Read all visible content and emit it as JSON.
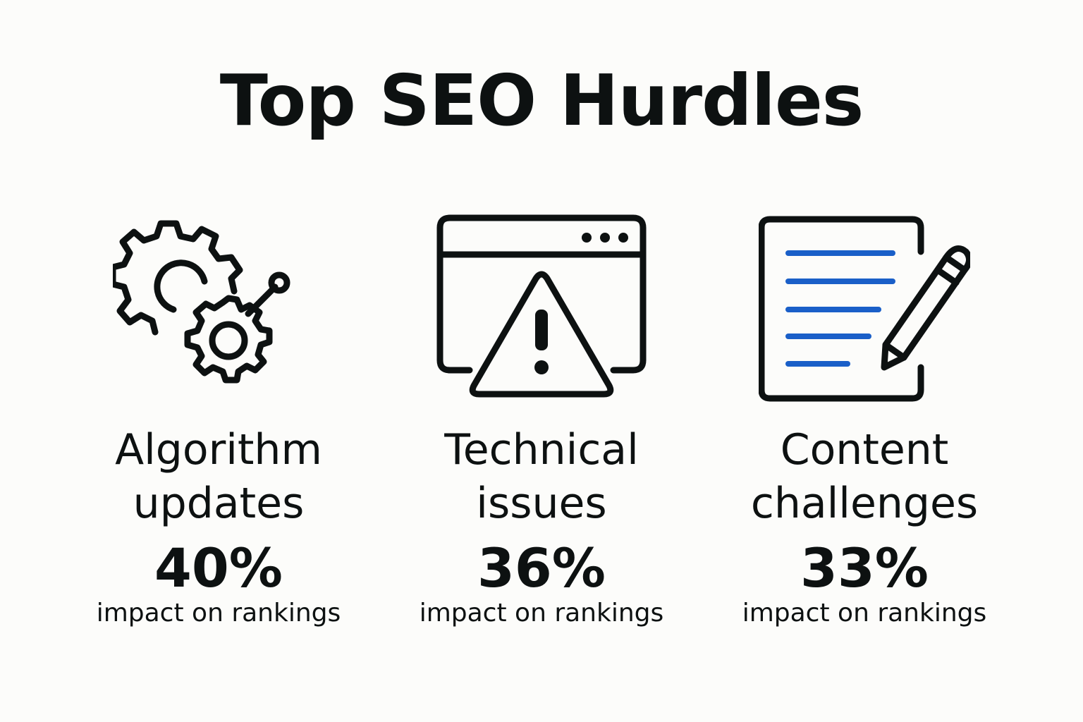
{
  "title": "Top SEO Hurdles",
  "accent_color": "#1a5fc8",
  "ink_color": "#0d1111",
  "hurdles": [
    {
      "icon": "gears-icon",
      "label_line1": "Algorithm",
      "label_line2": "updates",
      "value": "40%",
      "caption": "impact on rankings"
    },
    {
      "icon": "browser-warning-icon",
      "label_line1": "Technical",
      "label_line2": "issues",
      "value": "36%",
      "caption": "impact on rankings"
    },
    {
      "icon": "document-pencil-icon",
      "label_line1": "Content",
      "label_line2": "challenges",
      "value": "33%",
      "caption": "impact on rankings"
    }
  ]
}
